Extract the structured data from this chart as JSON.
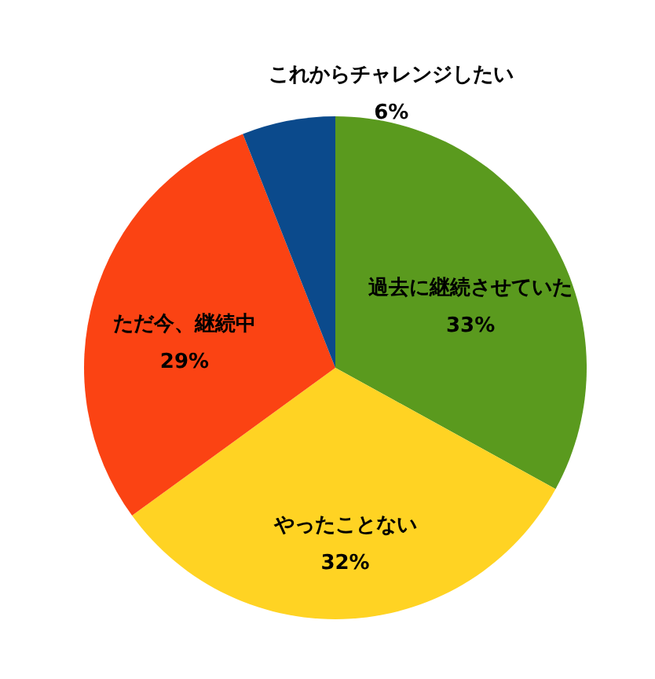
{
  "chart_data": {
    "type": "pie",
    "categories": [
      "過去に継続させていた",
      "やったことない",
      "ただ今、継続中",
      "これからチャレンジしたい"
    ],
    "values": [
      33,
      32,
      29,
      6
    ],
    "value_labels": [
      "33%",
      "32%",
      "29%",
      "6%"
    ],
    "colors": [
      "#5a9a1e",
      "#ffd323",
      "#fb4313",
      "#0b4a8c"
    ],
    "legend": false
  }
}
